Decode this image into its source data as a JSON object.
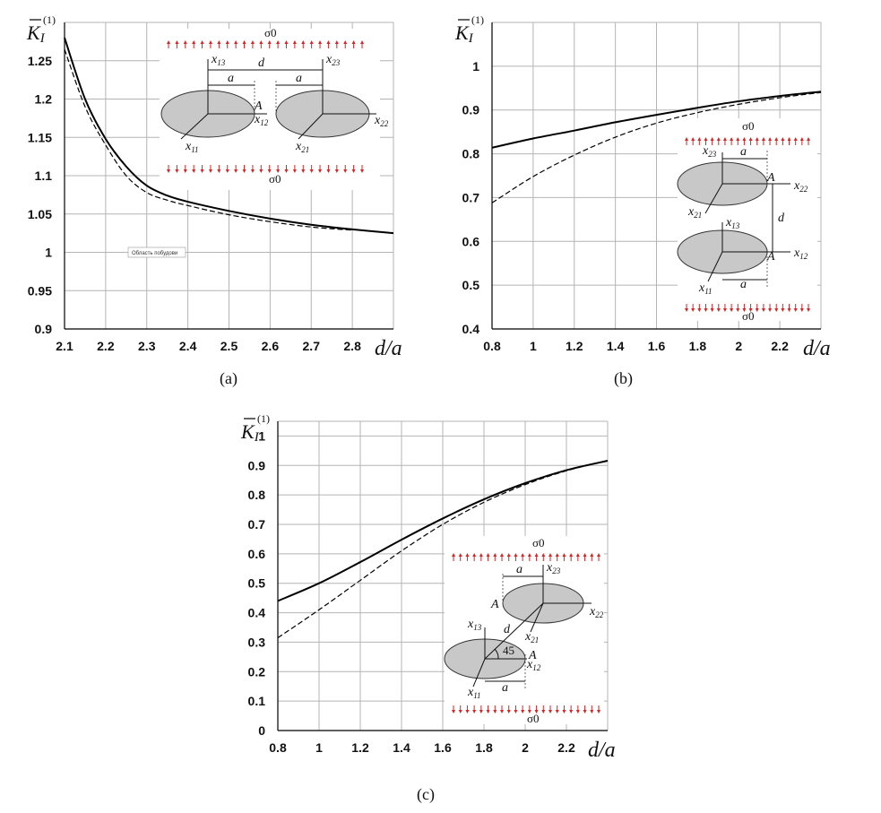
{
  "chart_data": [
    {
      "id": "a",
      "type": "line",
      "caption": "(a)",
      "ylabel": "K̄I(1)",
      "xlabel": "d/a",
      "xlim": [
        2.1,
        2.9
      ],
      "ylim": [
        0.9,
        1.3
      ],
      "xticks": [
        2.1,
        2.2,
        2.3,
        2.4,
        2.5,
        2.6,
        2.7,
        2.8
      ],
      "yticks": [
        0.9,
        0.95,
        1,
        1.05,
        1.1,
        1.15,
        1.2,
        1.25
      ],
      "xtick_labels": [
        "2.1",
        "2.2",
        "2.3",
        "2.4",
        "2.5",
        "2.6",
        "2.7",
        "2.8"
      ],
      "ytick_labels": [
        "0.9",
        "0.95",
        "1",
        "1.05",
        "1.1",
        "1.15",
        "1.2",
        "1.25"
      ],
      "series": [
        {
          "name": "solid",
          "style": "solid",
          "x": [
            2.1,
            2.15,
            2.2,
            2.25,
            2.3,
            2.35,
            2.4,
            2.5,
            2.6,
            2.7,
            2.8,
            2.9
          ],
          "y": [
            1.28,
            1.2,
            1.148,
            1.112,
            1.087,
            1.074,
            1.066,
            1.054,
            1.044,
            1.036,
            1.03,
            1.025
          ]
        },
        {
          "name": "dashed",
          "style": "dashed",
          "x": [
            2.1,
            2.15,
            2.2,
            2.25,
            2.3,
            2.35,
            2.4,
            2.5,
            2.6,
            2.7,
            2.8
          ],
          "y": [
            1.265,
            1.19,
            1.14,
            1.1,
            1.078,
            1.068,
            1.061,
            1.049,
            1.04,
            1.033,
            1.029
          ]
        }
      ],
      "annotation": "Область побудови",
      "inset": {
        "sigma_top": "σ0",
        "sigma_bottom": "σ0",
        "d": "d",
        "a": "a",
        "A": "A",
        "x13": "x",
        "x13s": "13",
        "x23": "x",
        "x23s": "23",
        "x12": "x",
        "x12s": "12",
        "x22": "x",
        "x22s": "22",
        "x11": "x",
        "x11s": "11",
        "x21": "x",
        "x21s": "21"
      }
    },
    {
      "id": "b",
      "type": "line",
      "caption": "(b)",
      "ylabel": "K̄I(1)",
      "xlabel": "d/a",
      "xlim": [
        0.8,
        2.4
      ],
      "ylim": [
        0.4,
        1.1
      ],
      "xticks": [
        0.8,
        1,
        1.2,
        1.4,
        1.6,
        1.8,
        2,
        2.2
      ],
      "yticks": [
        0.4,
        0.5,
        0.6,
        0.7,
        0.8,
        0.9,
        1
      ],
      "xtick_labels": [
        "0.8",
        "1",
        "1.2",
        "1.4",
        "1.6",
        "1.8",
        "2",
        "2.2"
      ],
      "ytick_labels": [
        "0.4",
        "0.5",
        "0.6",
        "0.7",
        "0.8",
        "0.9",
        "1"
      ],
      "series": [
        {
          "name": "solid",
          "style": "solid",
          "x": [
            0.8,
            1.0,
            1.2,
            1.4,
            1.6,
            1.8,
            2.0,
            2.2,
            2.4
          ],
          "y": [
            0.814,
            0.835,
            0.853,
            0.872,
            0.889,
            0.905,
            0.92,
            0.932,
            0.942
          ]
        },
        {
          "name": "dashed",
          "style": "dashed",
          "x": [
            0.8,
            1.0,
            1.2,
            1.4,
            1.6,
            1.8,
            2.0,
            2.2,
            2.4
          ],
          "y": [
            0.688,
            0.748,
            0.797,
            0.838,
            0.87,
            0.894,
            0.913,
            0.928,
            0.94
          ]
        }
      ],
      "inset": {
        "sigma_top": "σ0",
        "sigma_bottom": "σ0",
        "d": "d",
        "a": "a",
        "A": "A",
        "x13": "x",
        "x13s": "13",
        "x23": "x",
        "x23s": "23",
        "x12": "x",
        "x12s": "12",
        "x22": "x",
        "x22s": "22",
        "x11": "x",
        "x11s": "11",
        "x21": "x",
        "x21s": "21"
      }
    },
    {
      "id": "c",
      "type": "line",
      "caption": "(c)",
      "ylabel": "K̄I(1)",
      "xlabel": "d/a",
      "xlim": [
        0.8,
        2.4
      ],
      "ylim": [
        0,
        1.05
      ],
      "xticks": [
        0.8,
        1,
        1.2,
        1.4,
        1.6,
        1.8,
        2,
        2.2
      ],
      "yticks": [
        0,
        0.1,
        0.2,
        0.3,
        0.4,
        0.5,
        0.6,
        0.7,
        0.8,
        0.9,
        1
      ],
      "xtick_labels": [
        "0.8",
        "1",
        "1.2",
        "1.4",
        "1.6",
        "1.8",
        "2",
        "2.2"
      ],
      "ytick_labels": [
        "0",
        "0.1",
        "0.2",
        "0.3",
        "0.4",
        "0.5",
        "0.6",
        "0.7",
        "0.8",
        "0.9",
        "1"
      ],
      "series": [
        {
          "name": "solid",
          "style": "solid",
          "x": [
            0.8,
            1.0,
            1.2,
            1.4,
            1.6,
            1.8,
            2.0,
            2.2,
            2.4
          ],
          "y": [
            0.44,
            0.5,
            0.572,
            0.648,
            0.72,
            0.785,
            0.84,
            0.884,
            0.916
          ]
        },
        {
          "name": "dashed",
          "style": "dashed",
          "x": [
            0.8,
            1.0,
            1.2,
            1.4,
            1.6,
            1.8,
            2.0,
            2.2,
            2.4
          ],
          "y": [
            0.315,
            0.41,
            0.51,
            0.61,
            0.7,
            0.775,
            0.835,
            0.882,
            0.916
          ]
        }
      ],
      "inset": {
        "sigma_top": "σ0",
        "sigma_bottom": "σ0",
        "d": "d",
        "a": "a",
        "A": "A",
        "angle": "45",
        "x13": "x",
        "x13s": "13",
        "x23": "x",
        "x23s": "23",
        "x12": "x",
        "x12s": "12",
        "x22": "x",
        "x22s": "22",
        "x11": "x",
        "x11s": "11",
        "x21": "x",
        "x21s": "21"
      }
    }
  ]
}
